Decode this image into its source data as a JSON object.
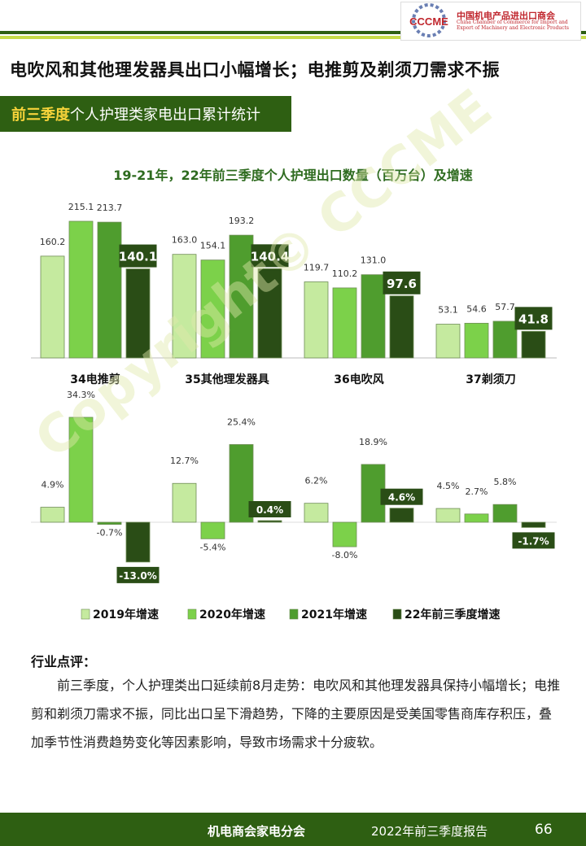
{
  "header": {
    "logo_cn": "中国机电产品进出口商会",
    "logo_en": "China Chamber of Commerce for Import and Export of Machinery and Electronic Products",
    "logo_mark": "CCCME"
  },
  "headline": "电吹风和其他理发器具出口小幅增长；电推剪及剃须刀需求不振",
  "section": {
    "highlight": "前三季度",
    "rest": "个人护理类家电出口累计统计"
  },
  "watermark": "Copyright© CCCME",
  "chart_data": {
    "type": "bar",
    "title": "19-21年，22年前三季度个人护理出口数量（百万台）及增速",
    "categories": [
      "34电推剪",
      "35其他理发器具",
      "36电吹风",
      "37剃须刀"
    ],
    "colors": [
      "#c5ea9f",
      "#7cd14a",
      "#4f9d2e",
      "#2a4d16"
    ],
    "series": [
      {
        "name": "2019年增速",
        "quantity": [
          160.2,
          163.0,
          119.7,
          53.1
        ],
        "growth": [
          4.9,
          12.7,
          6.2,
          4.5
        ],
        "quantity_labels": [
          "160.2",
          "163.0",
          "119.7",
          "53.1"
        ],
        "growth_labels": [
          "4.9%",
          "12.7%",
          "6.2%",
          "4.5%"
        ]
      },
      {
        "name": "2020年增速",
        "quantity": [
          215.1,
          154.1,
          110.2,
          54.6
        ],
        "growth": [
          34.3,
          -5.4,
          -8.0,
          2.7
        ],
        "quantity_labels": [
          "215.1",
          "154.1",
          "110.2",
          "54.6"
        ],
        "growth_labels": [
          "34.3%",
          "-5.4%",
          "-8.0%",
          "2.7%"
        ]
      },
      {
        "name": "2021年增速",
        "quantity": [
          213.7,
          193.2,
          131.0,
          57.7
        ],
        "growth": [
          -0.7,
          25.4,
          18.9,
          5.8
        ],
        "quantity_labels": [
          "213.7",
          "193.2",
          "131.0",
          "57.7"
        ],
        "growth_labels": [
          "-0.7%",
          "25.4%",
          "18.9%",
          "5.8%"
        ]
      },
      {
        "name": "22年前三季度增速",
        "quantity": [
          140.1,
          140.4,
          97.6,
          41.8
        ],
        "growth": [
          -13.0,
          0.4,
          4.6,
          -1.7
        ],
        "quantity_labels": [
          "140.1",
          "140.4",
          "97.6",
          "41.8"
        ],
        "growth_labels": [
          "-13.0%",
          "0.4%",
          "4.6%",
          "-1.7%"
        ]
      }
    ],
    "legend_position": "bottom",
    "grid": false
  },
  "comment": {
    "title": "行业点评：",
    "body": "前三季度，个人护理类出口延续前8月走势：电吹风和其他理发器具保持小幅增长；电推剪和剃须刀需求不振，同比出口呈下滑趋势，下降的主要原因是受美国零售商库存积压，叠加季节性消费趋势变化等因素影响，导致市场需求十分疲软。"
  },
  "footer": {
    "org": "机电商会家电分会",
    "report": "2022年前三季度报告",
    "page": "66"
  }
}
